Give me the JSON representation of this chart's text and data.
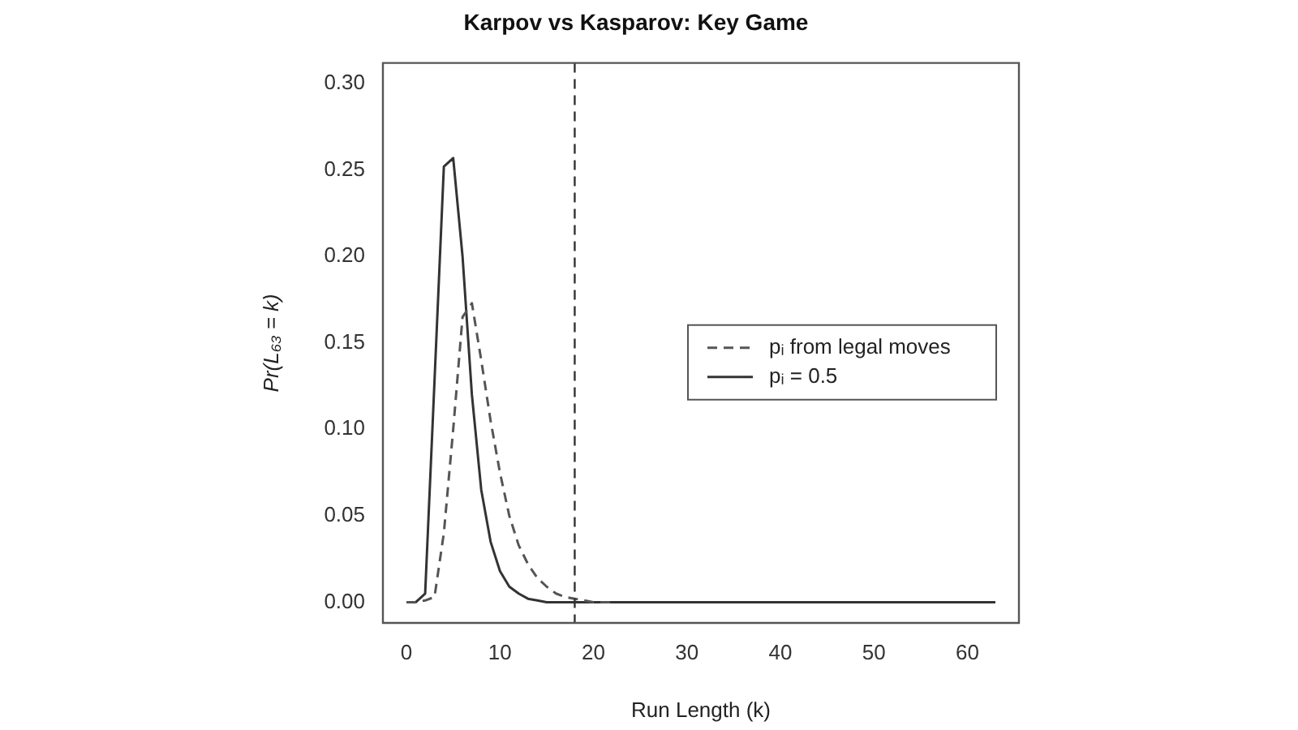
{
  "chart_data": {
    "type": "line",
    "title": "Karpov vs Kasparov: Key Game",
    "xlabel": "Run Length (k)",
    "ylabel": "Pr(L₆₃ = k)",
    "xlim": [
      -2.52,
      65.52
    ],
    "xticks": [
      0,
      10,
      20,
      30,
      40,
      50,
      60
    ],
    "ylim": [
      -0.012,
      0.312
    ],
    "yticks": [
      {
        "value": 0,
        "label": "0.00"
      },
      {
        "value": 0.05,
        "label": "0.05"
      },
      {
        "value": 0.1,
        "label": "0.10"
      },
      {
        "value": 0.15,
        "label": "0.15"
      },
      {
        "value": 0.2,
        "label": "0.20"
      },
      {
        "value": 0.25,
        "label": "0.25"
      },
      {
        "value": 0.3,
        "label": "0.30"
      }
    ],
    "grid": false,
    "legend": "right",
    "marker": "none",
    "ref_lines": [
      {
        "axis": "x",
        "value": 18,
        "color": "#333333",
        "line_style": "dashed"
      }
    ],
    "series": [
      {
        "name": "pᵢ from legal moves",
        "color": "#555555",
        "line_style": "dashed",
        "x": [
          0,
          1,
          2,
          3,
          4,
          5,
          6,
          7,
          8,
          9,
          10,
          11,
          12,
          13,
          14,
          15,
          16,
          17,
          18,
          19,
          20,
          21,
          22
        ],
        "values": [
          0,
          0,
          0.001,
          0.003,
          0.04,
          0.1,
          0.165,
          0.173,
          0.14,
          0.105,
          0.075,
          0.05,
          0.033,
          0.022,
          0.014,
          0.009,
          0.005,
          0.003,
          0.002,
          0.001,
          0,
          0,
          0
        ]
      },
      {
        "name": "pᵢ = 0.5",
        "color": "#333333",
        "line_style": "solid",
        "x": [
          0,
          1,
          2,
          3,
          4,
          5,
          6,
          7,
          8,
          9,
          10,
          11,
          12,
          13,
          14,
          15,
          16,
          17,
          18,
          19,
          20,
          21,
          22,
          23,
          24,
          25,
          26,
          27,
          28,
          29,
          30,
          31,
          32,
          33,
          34,
          35,
          36,
          37,
          38,
          39,
          40,
          41,
          42,
          43,
          44,
          45,
          46,
          47,
          48,
          49,
          50,
          51,
          52,
          53,
          54,
          55,
          56,
          57,
          58,
          59,
          60,
          61,
          62,
          63
        ],
        "values": [
          0,
          0,
          0.005,
          0.128,
          0.252,
          0.257,
          0.2,
          0.12,
          0.065,
          0.035,
          0.018,
          0.009,
          0.005,
          0.002,
          0.001,
          0,
          0,
          0,
          0,
          0,
          0,
          0,
          0,
          0,
          0,
          0,
          0,
          0,
          0,
          0,
          0,
          0,
          0,
          0,
          0,
          0,
          0,
          0,
          0,
          0,
          0,
          0,
          0,
          0,
          0,
          0,
          0,
          0,
          0,
          0,
          0,
          0,
          0,
          0,
          0,
          0,
          0,
          0,
          0,
          0,
          0,
          0,
          0,
          0
        ]
      }
    ]
  }
}
